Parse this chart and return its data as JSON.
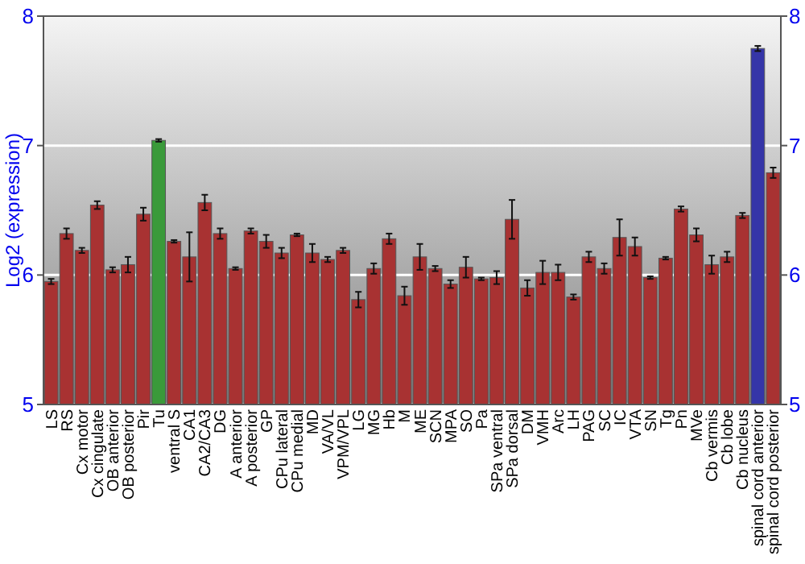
{
  "chart_data": {
    "type": "bar",
    "ylabel": "Log2 (expression)",
    "categories": [
      "LS",
      "RS",
      "Cx motor",
      "Cx cingulate",
      "OB anterior",
      "OB posterior",
      "Pir",
      "Tu",
      "ventral S",
      "CA1",
      "CA2/CA3",
      "DG",
      "A anterior",
      "A posterior",
      "GP",
      "CPu lateral",
      "CPu medial",
      "MD",
      "VA/VL",
      "VPM/VPL",
      "LG",
      "MG",
      "Hb",
      "M",
      "ME",
      "SCN",
      "MPA",
      "SO",
      "Pa",
      "SPa ventral",
      "SPa dorsal",
      "DM",
      "VMH",
      "Arc",
      "LH",
      "PAG",
      "SC",
      "IC",
      "VTA",
      "SN",
      "Tg",
      "Pn",
      "MVe",
      "Cb vermis",
      "Cb lobe",
      "Cb nucleus",
      "spinal cord anterior",
      "spinal cord posterior"
    ],
    "values": [
      5.95,
      6.32,
      6.19,
      6.54,
      6.04,
      6.08,
      6.47,
      7.04,
      6.26,
      6.14,
      6.56,
      6.32,
      6.05,
      6.34,
      6.26,
      6.17,
      6.31,
      6.17,
      6.12,
      6.19,
      5.81,
      6.05,
      6.28,
      5.84,
      6.14,
      6.05,
      5.93,
      6.06,
      5.97,
      5.98,
      6.43,
      5.9,
      6.02,
      6.02,
      5.83,
      6.14,
      6.05,
      6.29,
      6.22,
      5.98,
      6.13,
      6.51,
      6.31,
      6.08,
      6.14,
      6.46,
      7.75,
      6.79
    ],
    "errors": [
      0.02,
      0.04,
      0.02,
      0.03,
      0.02,
      0.06,
      0.05,
      0.01,
      0.01,
      0.19,
      0.06,
      0.04,
      0.01,
      0.02,
      0.05,
      0.04,
      0.01,
      0.07,
      0.02,
      0.02,
      0.06,
      0.04,
      0.04,
      0.07,
      0.1,
      0.02,
      0.03,
      0.08,
      0.01,
      0.05,
      0.15,
      0.06,
      0.09,
      0.06,
      0.02,
      0.04,
      0.04,
      0.14,
      0.07,
      0.01,
      0.01,
      0.02,
      0.05,
      0.07,
      0.04,
      0.02,
      0.02,
      0.04
    ],
    "colors": [
      "#a83232",
      "#a83232",
      "#a83232",
      "#a83232",
      "#a83232",
      "#a83232",
      "#a83232",
      "#3a9a3a",
      "#a83232",
      "#a83232",
      "#a83232",
      "#a83232",
      "#a83232",
      "#a83232",
      "#a83232",
      "#a83232",
      "#a83232",
      "#a83232",
      "#a83232",
      "#a83232",
      "#a83232",
      "#a83232",
      "#a83232",
      "#a83232",
      "#a83232",
      "#a83232",
      "#a83232",
      "#a83232",
      "#a83232",
      "#a83232",
      "#a83232",
      "#a83232",
      "#a83232",
      "#a83232",
      "#a83232",
      "#a83232",
      "#a83232",
      "#a83232",
      "#a83232",
      "#a83232",
      "#a83232",
      "#a83232",
      "#a83232",
      "#a83232",
      "#a83232",
      "#a83232",
      "#3535a8",
      "#a83232"
    ],
    "ylim": [
      5,
      8
    ],
    "yticks": [
      5,
      6,
      7,
      8
    ],
    "y2lim": [
      5,
      8
    ],
    "y2ticks": [
      5,
      6,
      7,
      8
    ],
    "grid": "y"
  }
}
